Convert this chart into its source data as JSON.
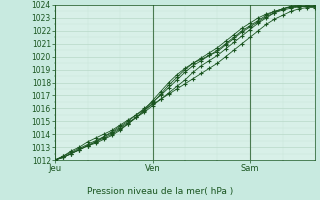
{
  "title": "",
  "xlabel": "Pression niveau de la mer( hPa )",
  "ylabel": "",
  "bg_color": "#c8eae0",
  "plot_bg_color": "#d8f0e8",
  "grid_color": "#b8d8c8",
  "minor_grid_color": "#c8e4d8",
  "line_color": "#1a5520",
  "marker_color": "#1a5520",
  "vline_color": "#4a7a50",
  "ylim": [
    1012,
    1024
  ],
  "yticks": [
    1012,
    1013,
    1014,
    1015,
    1016,
    1017,
    1018,
    1019,
    1020,
    1021,
    1022,
    1023,
    1024
  ],
  "xlim": [
    0,
    96
  ],
  "xtick_positions": [
    0,
    36,
    72
  ],
  "xtick_labels": [
    "Jeu",
    "Ven",
    "Sam"
  ],
  "x_vlines": [
    0,
    36,
    72
  ],
  "series": [
    [
      0,
      1012.0,
      3,
      1012.3,
      6,
      1012.7,
      9,
      1013.0,
      12,
      1013.4,
      15,
      1013.7,
      18,
      1014.0,
      21,
      1014.3,
      24,
      1014.7,
      27,
      1015.1,
      30,
      1015.5,
      33,
      1015.9,
      36,
      1016.3,
      39,
      1016.7,
      42,
      1017.1,
      45,
      1017.5,
      48,
      1017.9,
      51,
      1018.3,
      54,
      1018.7,
      57,
      1019.1,
      60,
      1019.5,
      63,
      1020.0,
      66,
      1020.5,
      69,
      1021.0,
      72,
      1021.5,
      75,
      1022.0,
      78,
      1022.5,
      81,
      1022.9,
      84,
      1023.2,
      87,
      1023.5,
      90,
      1023.7,
      93,
      1023.8,
      96,
      1023.8
    ],
    [
      0,
      1012.0,
      3,
      1012.3,
      6,
      1012.6,
      9,
      1012.9,
      12,
      1013.2,
      15,
      1013.5,
      18,
      1013.8,
      21,
      1014.1,
      24,
      1014.5,
      27,
      1014.9,
      30,
      1015.3,
      33,
      1015.7,
      36,
      1016.2,
      39,
      1016.7,
      42,
      1017.2,
      45,
      1017.7,
      48,
      1018.2,
      51,
      1018.8,
      54,
      1019.3,
      57,
      1019.7,
      60,
      1020.1,
      63,
      1020.6,
      66,
      1021.1,
      69,
      1021.6,
      72,
      1022.1,
      75,
      1022.6,
      78,
      1023.0,
      81,
      1023.4,
      84,
      1023.7,
      87,
      1023.9,
      90,
      1024.0,
      93,
      1024.0,
      96,
      1024.0
    ],
    [
      0,
      1012.0,
      3,
      1012.2,
      6,
      1012.5,
      9,
      1012.8,
      12,
      1013.1,
      15,
      1013.4,
      18,
      1013.8,
      21,
      1014.2,
      24,
      1014.6,
      27,
      1015.0,
      30,
      1015.5,
      33,
      1016.0,
      36,
      1016.5,
      39,
      1017.0,
      42,
      1017.6,
      45,
      1018.2,
      48,
      1018.8,
      51,
      1019.3,
      54,
      1019.7,
      57,
      1020.1,
      60,
      1020.5,
      63,
      1021.0,
      66,
      1021.5,
      69,
      1022.0,
      72,
      1022.4,
      75,
      1022.8,
      78,
      1023.2,
      81,
      1023.5,
      84,
      1023.7,
      87,
      1023.85,
      90,
      1023.9,
      93,
      1023.9,
      96,
      1023.9
    ],
    [
      0,
      1012.0,
      3,
      1012.2,
      6,
      1012.5,
      9,
      1012.8,
      12,
      1013.1,
      15,
      1013.4,
      18,
      1013.7,
      21,
      1014.0,
      24,
      1014.4,
      27,
      1014.8,
      30,
      1015.3,
      33,
      1015.8,
      36,
      1016.4,
      39,
      1017.1,
      42,
      1017.8,
      45,
      1018.4,
      48,
      1019.0,
      51,
      1019.5,
      54,
      1019.9,
      57,
      1020.3,
      60,
      1020.7,
      63,
      1021.2,
      66,
      1021.7,
      69,
      1022.2,
      72,
      1022.6,
      75,
      1023.0,
      78,
      1023.3,
      81,
      1023.5,
      84,
      1023.7,
      87,
      1023.85,
      90,
      1023.9,
      93,
      1023.9,
      96,
      1023.9
    ],
    [
      0,
      1012.0,
      3,
      1012.2,
      6,
      1012.5,
      9,
      1012.8,
      12,
      1013.1,
      15,
      1013.3,
      18,
      1013.6,
      21,
      1013.9,
      24,
      1014.3,
      27,
      1014.8,
      30,
      1015.3,
      33,
      1015.9,
      36,
      1016.6,
      39,
      1017.3,
      42,
      1018.0,
      45,
      1018.6,
      48,
      1019.1,
      51,
      1019.5,
      54,
      1019.8,
      57,
      1020.1,
      60,
      1020.4,
      63,
      1020.9,
      66,
      1021.4,
      69,
      1021.9,
      72,
      1022.3,
      75,
      1022.7,
      78,
      1023.1,
      81,
      1023.4,
      84,
      1023.6,
      87,
      1023.75,
      90,
      1023.85,
      93,
      1023.9,
      96,
      1023.9
    ]
  ]
}
